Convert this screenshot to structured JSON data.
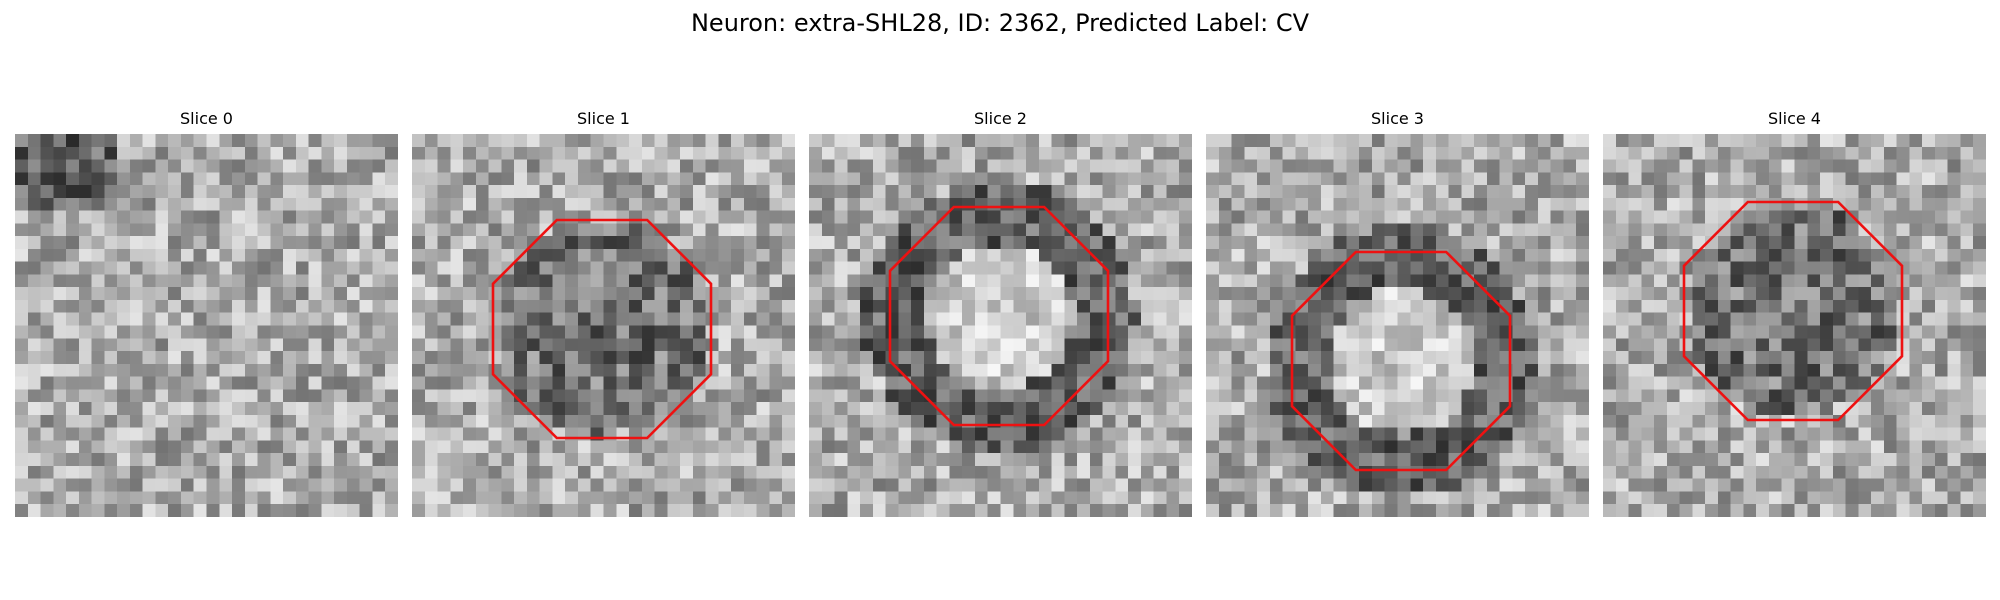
{
  "figure": {
    "title": "Neuron: extra-SHL28, ID: 2362, Predicted Label: CV"
  },
  "contour_color": "#ee1111",
  "slices": [
    {
      "label": "Slice 0",
      "has_contour": false,
      "pattern": "diffuse"
    },
    {
      "label": "Slice 1",
      "has_contour": true,
      "pattern": "dark-center"
    },
    {
      "label": "Slice 2",
      "has_contour": true,
      "pattern": "bright-center-dark-ring"
    },
    {
      "label": "Slice 3",
      "has_contour": true,
      "pattern": "bright-center-dark-ring"
    },
    {
      "label": "Slice 4",
      "has_contour": true,
      "pattern": "dark-center"
    }
  ]
}
